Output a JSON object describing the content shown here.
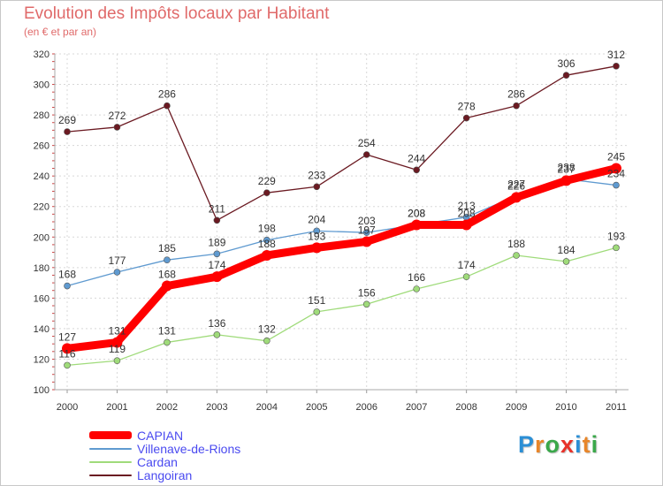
{
  "title": "Evolution des Impôts locaux par Habitant",
  "subtitle": "(en € et par an)",
  "logo": {
    "text": "Proxiti",
    "letters": [
      "P",
      "r",
      "o",
      "x",
      "i",
      "t",
      "i"
    ],
    "colors": [
      "#2b8fd6",
      "#e8862a",
      "#3aa84a",
      "#e8322a",
      "#2b8fd6",
      "#e8862a",
      "#3aa84a"
    ]
  },
  "chart_data": {
    "type": "line",
    "x": [
      "2000",
      "2001",
      "2002",
      "2003",
      "2004",
      "2005",
      "2006",
      "2007",
      "2008",
      "2009",
      "2010",
      "2011"
    ],
    "ylim": [
      100,
      320
    ],
    "yticks": [
      "100",
      "120",
      "140",
      "160",
      "180",
      "200",
      "220",
      "240",
      "260",
      "280",
      "300",
      "320"
    ],
    "grid": true,
    "legend_position": "bottom-left",
    "series": [
      {
        "name": "Langoiran",
        "color": "#6b1a22",
        "values": [
          269,
          272,
          286,
          211,
          229,
          233,
          254,
          244,
          278,
          286,
          306,
          312
        ]
      },
      {
        "name": "Villenave-de-Rions",
        "color": "#5f9ad0",
        "values": [
          168,
          177,
          185,
          189,
          198,
          204,
          203,
          208,
          213,
          227,
          238,
          234
        ]
      },
      {
        "name": "Cardan",
        "color": "#9fdb7a",
        "values": [
          116,
          119,
          131,
          136,
          132,
          151,
          156,
          166,
          174,
          188,
          184,
          193
        ]
      },
      {
        "name": "CAPIAN",
        "color": "#ff0000",
        "values": [
          127,
          131,
          168,
          174,
          188,
          193,
          197,
          208,
          208,
          226,
          237,
          245
        ]
      }
    ]
  },
  "legend": [
    {
      "label": "CAPIAN",
      "color": "#ff0000"
    },
    {
      "label": "Villenave-de-Rions",
      "color": "#5f9ad0"
    },
    {
      "label": "Cardan",
      "color": "#9fdb7a"
    },
    {
      "label": "Langoiran",
      "color": "#6b1a22"
    }
  ]
}
